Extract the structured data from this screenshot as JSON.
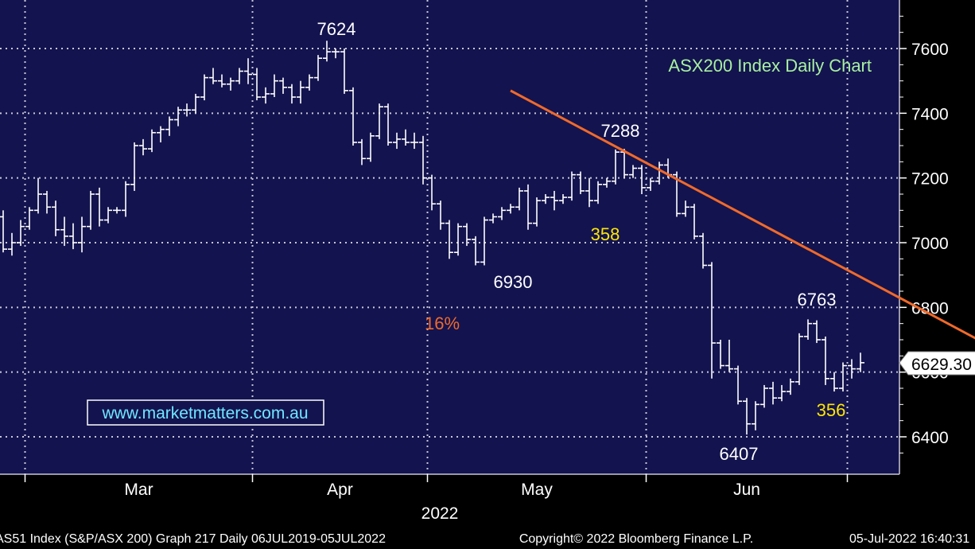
{
  "chart_data": {
    "type": "ohlc",
    "title": "ASX200 Index Daily Chart",
    "year_label": "2022",
    "x_labels": [
      "Mar",
      "Apr",
      "May",
      "Jun"
    ],
    "y_ticks": [
      6400,
      6600,
      6800,
      7000,
      7200,
      7400,
      7600
    ],
    "ylim": [
      6290,
      7730
    ],
    "grid": true,
    "last_price_label": "6629.30",
    "last_price": 6629.3,
    "watermark": "www.marketmatters.com.au",
    "annotations": {
      "high_1": "7624",
      "low_1": "6930",
      "high_2": "7288",
      "low_2": "6407",
      "high_3": "6763",
      "rally_1": "358",
      "rally_2": "356",
      "decline": "16%"
    },
    "trend_arrow": {
      "from": {
        "day": 58,
        "price": 7470
      },
      "to": {
        "day": 133,
        "price": 6390
      }
    },
    "footer": {
      "left": "AS51 Index (S&P/ASX 200) Graph 217  Daily 06JUL2019-05JUL2022",
      "center": "Copyright© 2022 Bloomberg Finance L.P.",
      "right": "05-Jul-2022 16:40:31"
    },
    "bars": [
      [
        7080,
        7100,
        6970,
        6980
      ],
      [
        6980,
        7030,
        6960,
        7000
      ],
      [
        7000,
        7070,
        6990,
        7050
      ],
      [
        7050,
        7110,
        7040,
        7100
      ],
      [
        7100,
        7200,
        7090,
        7150
      ],
      [
        7150,
        7160,
        7090,
        7110
      ],
      [
        7110,
        7130,
        7020,
        7040
      ],
      [
        7040,
        7080,
        6990,
        7020
      ],
      [
        7020,
        7060,
        6980,
        7000
      ],
      [
        7000,
        7080,
        6970,
        7050
      ],
      [
        7050,
        7160,
        7040,
        7150
      ],
      [
        7150,
        7170,
        7050,
        7070
      ],
      [
        7070,
        7110,
        7060,
        7100
      ],
      [
        7100,
        7110,
        7090,
        7100
      ],
      [
        7100,
        7190,
        7080,
        7180
      ],
      [
        7180,
        7310,
        7160,
        7300
      ],
      [
        7300,
        7320,
        7270,
        7290
      ],
      [
        7290,
        7350,
        7280,
        7340
      ],
      [
        7340,
        7360,
        7310,
        7350
      ],
      [
        7350,
        7390,
        7330,
        7380
      ],
      [
        7380,
        7420,
        7360,
        7410
      ],
      [
        7410,
        7430,
        7390,
        7410
      ],
      [
        7410,
        7460,
        7400,
        7450
      ],
      [
        7450,
        7520,
        7440,
        7510
      ],
      [
        7510,
        7540,
        7490,
        7500
      ],
      [
        7500,
        7520,
        7480,
        7490
      ],
      [
        7490,
        7510,
        7470,
        7500
      ],
      [
        7500,
        7540,
        7490,
        7530
      ],
      [
        7530,
        7570,
        7490,
        7520
      ],
      [
        7520,
        7540,
        7440,
        7450
      ],
      [
        7450,
        7480,
        7430,
        7460
      ],
      [
        7460,
        7520,
        7450,
        7500
      ],
      [
        7500,
        7510,
        7460,
        7480
      ],
      [
        7480,
        7490,
        7430,
        7450
      ],
      [
        7450,
        7500,
        7430,
        7480
      ],
      [
        7480,
        7520,
        7470,
        7510
      ],
      [
        7510,
        7580,
        7500,
        7570
      ],
      [
        7570,
        7624,
        7560,
        7590
      ],
      [
        7590,
        7600,
        7570,
        7590
      ],
      [
        7590,
        7600,
        7460,
        7470
      ],
      [
        7470,
        7480,
        7300,
        7310
      ],
      [
        7310,
        7320,
        7240,
        7260
      ],
      [
        7260,
        7340,
        7250,
        7330
      ],
      [
        7330,
        7430,
        7320,
        7420
      ],
      [
        7420,
        7430,
        7300,
        7310
      ],
      [
        7310,
        7340,
        7290,
        7320
      ],
      [
        7320,
        7350,
        7300,
        7310
      ],
      [
        7310,
        7340,
        7290,
        7310
      ],
      [
        7310,
        7330,
        7180,
        7200
      ],
      [
        7200,
        7210,
        7100,
        7120
      ],
      [
        7120,
        7130,
        7040,
        7060
      ],
      [
        7060,
        7070,
        6950,
        6970
      ],
      [
        6970,
        7060,
        6960,
        7050
      ],
      [
        7050,
        7060,
        6990,
        7010
      ],
      [
        7010,
        7020,
        6930,
        6940
      ],
      [
        6940,
        7080,
        6930,
        7070
      ],
      [
        7070,
        7090,
        7060,
        7080
      ],
      [
        7080,
        7110,
        7070,
        7100
      ],
      [
        7100,
        7120,
        7090,
        7110
      ],
      [
        7110,
        7170,
        7100,
        7160
      ],
      [
        7160,
        7180,
        7040,
        7060
      ],
      [
        7060,
        7140,
        7050,
        7130
      ],
      [
        7130,
        7150,
        7120,
        7140
      ],
      [
        7140,
        7160,
        7100,
        7130
      ],
      [
        7130,
        7150,
        7120,
        7140
      ],
      [
        7140,
        7220,
        7130,
        7210
      ],
      [
        7210,
        7220,
        7150,
        7160
      ],
      [
        7160,
        7200,
        7110,
        7130
      ],
      [
        7130,
        7190,
        7120,
        7180
      ],
      [
        7180,
        7200,
        7170,
        7190
      ],
      [
        7190,
        7288,
        7180,
        7280
      ],
      [
        7280,
        7290,
        7200,
        7210
      ],
      [
        7210,
        7240,
        7200,
        7230
      ],
      [
        7230,
        7240,
        7150,
        7170
      ],
      [
        7170,
        7200,
        7160,
        7190
      ],
      [
        7190,
        7250,
        7180,
        7240
      ],
      [
        7240,
        7260,
        7200,
        7210
      ],
      [
        7210,
        7220,
        7080,
        7090
      ],
      [
        7090,
        7130,
        7080,
        7110
      ],
      [
        7110,
        7120,
        7010,
        7020
      ],
      [
        7020,
        7030,
        6920,
        6930
      ],
      [
        6930,
        6940,
        6580,
        6690
      ],
      [
        6690,
        6700,
        6610,
        6620
      ],
      [
        6620,
        6700,
        6600,
        6610
      ],
      [
        6610,
        6620,
        6500,
        6510
      ],
      [
        6510,
        6520,
        6407,
        6440
      ],
      [
        6440,
        6510,
        6420,
        6500
      ],
      [
        6500,
        6560,
        6490,
        6550
      ],
      [
        6550,
        6570,
        6500,
        6520
      ],
      [
        6520,
        6560,
        6510,
        6540
      ],
      [
        6540,
        6580,
        6530,
        6570
      ],
      [
        6570,
        6720,
        6560,
        6710
      ],
      [
        6710,
        6763,
        6700,
        6750
      ],
      [
        6750,
        6760,
        6690,
        6700
      ],
      [
        6700,
        6710,
        6560,
        6580
      ],
      [
        6580,
        6600,
        6540,
        6550
      ],
      [
        6550,
        6630,
        6540,
        6620
      ],
      [
        6620,
        6640,
        6580,
        6610
      ],
      [
        6610,
        6660,
        6600,
        6629
      ]
    ]
  }
}
